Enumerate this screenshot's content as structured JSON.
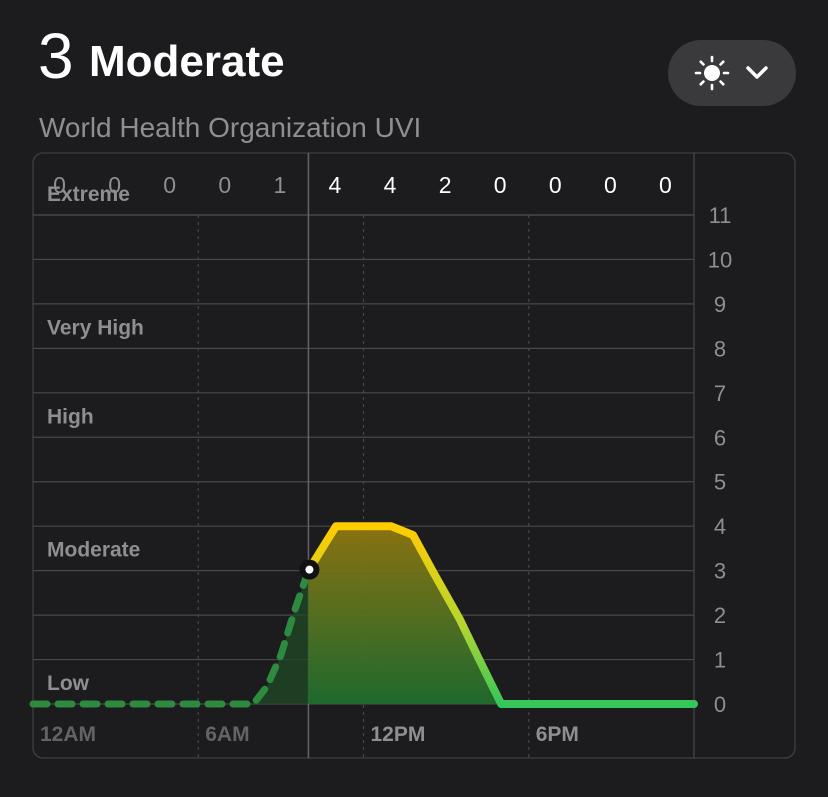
{
  "header": {
    "value": "3",
    "category": "Moderate",
    "subtitle": "World Health Organization UVI"
  },
  "controls": {
    "metric_selector_icon": "sun-icon",
    "dropdown_icon": "chevron-down-icon"
  },
  "colors": {
    "background": "#1c1c1e",
    "panel_border": "#3a3a3c",
    "grid": "#48484a",
    "label": "#8e8e93",
    "past_label": "#636366",
    "yellow": "#ffcc00",
    "green": "#34c759",
    "past_line": "#2e8a3e"
  },
  "chart_data": {
    "type": "line",
    "title": "",
    "xlabel": "",
    "ylabel": "",
    "ylim": [
      0,
      11
    ],
    "y_ticks": [
      0,
      1,
      2,
      3,
      4,
      5,
      6,
      7,
      8,
      9,
      10,
      11
    ],
    "x_ticks": [
      {
        "label": "12AM",
        "hour": 0,
        "past": true
      },
      {
        "label": "6AM",
        "hour": 6,
        "past": true
      },
      {
        "label": "12PM",
        "hour": 12,
        "past": false
      },
      {
        "label": "6PM",
        "hour": 18,
        "past": false
      }
    ],
    "current": {
      "hour": 10,
      "value": 3
    },
    "hourly_max": {
      "values": [
        "0",
        "0",
        "0",
        "0",
        "1",
        "4",
        "4",
        "2",
        "0",
        "0",
        "0",
        "0"
      ],
      "past_count": 5
    },
    "categories": [
      {
        "label": "Extreme",
        "value": 11
      },
      {
        "label": "Very High",
        "value": 8
      },
      {
        "label": "High",
        "value": 6
      },
      {
        "label": "Moderate",
        "value": 3
      },
      {
        "label": "Low",
        "value": 0
      }
    ],
    "series": [
      {
        "x": [
          0,
          1,
          2,
          3,
          4,
          5,
          6,
          7,
          8,
          8.5,
          9,
          9.5,
          10,
          10.7,
          11,
          12,
          13,
          13.8,
          14.5,
          15.5,
          16.2,
          17,
          18,
          19,
          20,
          21,
          22,
          23,
          24
        ],
        "y": [
          0,
          0,
          0,
          0,
          0,
          0,
          0,
          0,
          0,
          0.4,
          1.1,
          2.1,
          3,
          3.7,
          4,
          4,
          4,
          3.8,
          3,
          1.9,
          1,
          0,
          0,
          0,
          0,
          0,
          0,
          0,
          0
        ]
      }
    ]
  }
}
